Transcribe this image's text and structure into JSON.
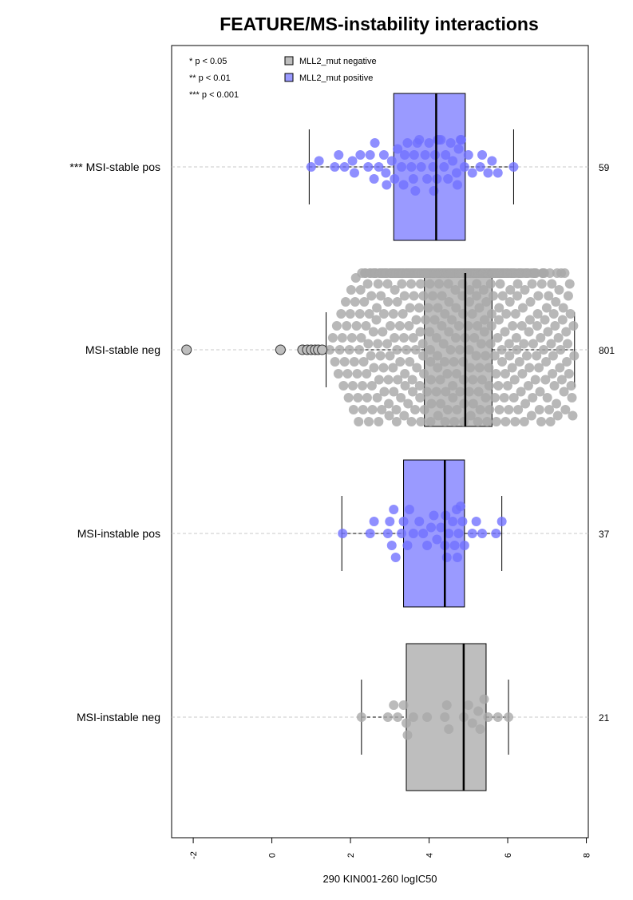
{
  "chart_data": {
    "type": "box",
    "orientation": "horizontal",
    "title": "FEATURE/MS-instability interactions",
    "xlabel": "290 KIN001-260 logIC50",
    "xlim": [
      -2.55,
      8.05
    ],
    "xticks": [
      -2,
      0,
      2,
      4,
      6,
      8
    ],
    "legend": {
      "placement": "top-left",
      "significance": [
        "* p < 0.05",
        "** p < 0.01",
        "*** p < 0.001"
      ],
      "groups": [
        {
          "label": "MLL2_mut negative",
          "color": "#bebebe"
        },
        {
          "label": "MLL2_mut positive",
          "color": "#9a9aff"
        }
      ]
    },
    "groups": [
      {
        "label": "*** MSI-stable pos",
        "n": "59",
        "fill": "#9a9aff",
        "point_color": "#7070ff",
        "whisker_low": 0.95,
        "q1": 3.1,
        "median": 4.18,
        "q3": 4.92,
        "whisker_high": 6.15,
        "points": [
          1.0,
          1.2,
          1.6,
          1.7,
          1.85,
          2.05,
          2.1,
          2.25,
          2.45,
          2.5,
          2.6,
          2.62,
          2.72,
          2.85,
          2.9,
          2.92,
          3.05,
          3.12,
          3.2,
          3.3,
          3.35,
          3.38,
          3.45,
          3.55,
          3.6,
          3.62,
          3.65,
          3.7,
          3.75,
          3.8,
          3.9,
          3.95,
          4.0,
          4.1,
          4.12,
          4.15,
          4.2,
          4.22,
          4.25,
          4.3,
          4.38,
          4.42,
          4.48,
          4.55,
          4.6,
          4.7,
          4.72,
          4.75,
          4.8,
          4.82,
          4.9,
          5.0,
          5.1,
          5.3,
          5.35,
          5.5,
          5.6,
          5.75,
          6.15
        ]
      },
      {
        "label": "MSI-stable neg",
        "n": "801",
        "fill": "#bebebe",
        "point_color": "#a8a8a8",
        "whisker_low": 1.38,
        "q1": 3.88,
        "median": 4.92,
        "q3": 5.6,
        "whisker_high": 7.7,
        "outliers": [
          -2.17,
          0.22,
          0.78,
          0.9,
          1.0,
          1.1,
          1.18,
          1.28
        ],
        "n_points": 801
      },
      {
        "label": "MSI-instable pos",
        "n": "37",
        "fill": "#9a9aff",
        "point_color": "#7070ff",
        "whisker_low": 1.78,
        "q1": 3.35,
        "median": 4.4,
        "q3": 4.9,
        "whisker_high": 5.85,
        "points": [
          1.8,
          2.5,
          2.6,
          2.95,
          3.0,
          3.05,
          3.1,
          3.15,
          3.3,
          3.35,
          3.45,
          3.5,
          3.6,
          3.75,
          3.85,
          3.95,
          4.05,
          4.12,
          4.2,
          4.3,
          4.4,
          4.42,
          4.45,
          4.5,
          4.6,
          4.65,
          4.7,
          4.72,
          4.75,
          4.8,
          4.85,
          4.9,
          5.1,
          5.2,
          5.35,
          5.7,
          5.85
        ]
      },
      {
        "label": "MSI-instable neg",
        "n": "21",
        "fill": "#bebebe",
        "point_color": "#a8a8a8",
        "whisker_low": 2.28,
        "q1": 3.42,
        "median": 4.88,
        "q3": 5.45,
        "whisker_high": 6.02,
        "points": [
          2.28,
          2.95,
          3.1,
          3.2,
          3.35,
          3.42,
          3.45,
          3.6,
          3.95,
          4.4,
          4.45,
          4.5,
          4.88,
          5.0,
          5.1,
          5.25,
          5.3,
          5.4,
          5.5,
          5.75,
          6.02
        ]
      }
    ]
  }
}
